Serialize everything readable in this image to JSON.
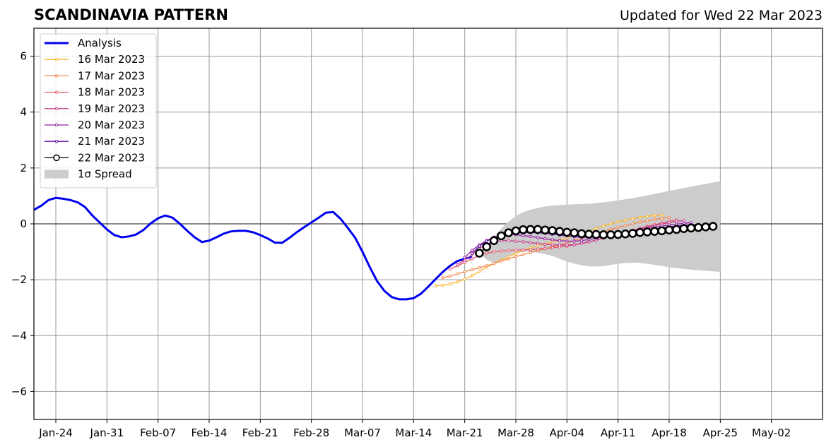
{
  "title": "SCANDINAVIA PATTERN",
  "subtitle": "Updated for Wed 22 Mar 2023",
  "chart_data": {
    "type": "line",
    "title": "SCANDINAVIA PATTERN",
    "subtitle": "Updated for Wed 22 Mar 2023",
    "xlabel": "",
    "ylabel": "",
    "x_range": [
      "2023-01-21",
      "2023-05-09"
    ],
    "ylim": [
      -7,
      7
    ],
    "grid": true,
    "legend_position": "top-left",
    "x_ticks": [
      "Jan-24",
      "Jan-31",
      "Feb-07",
      "Feb-14",
      "Feb-21",
      "Feb-28",
      "Mar-07",
      "Mar-14",
      "Mar-21",
      "Mar-28",
      "Apr-04",
      "Apr-11",
      "Apr-18",
      "Apr-25",
      "May-02"
    ],
    "x_tick_dates": [
      "2023-01-24",
      "2023-01-31",
      "2023-02-07",
      "2023-02-14",
      "2023-02-21",
      "2023-02-28",
      "2023-03-07",
      "2023-03-14",
      "2023-03-21",
      "2023-03-28",
      "2023-04-04",
      "2023-04-11",
      "2023-04-18",
      "2023-04-25",
      "2023-05-02"
    ],
    "y_ticks": [
      -6,
      -4,
      -2,
      0,
      2,
      4,
      6
    ],
    "y_tick_labels": [
      "−6",
      "−4",
      "−2",
      "0",
      "2",
      "4",
      "6"
    ],
    "legend": [
      "Analysis",
      "16 Mar 2023",
      "17 Mar 2023",
      "18 Mar 2023",
      "19 Mar 2023",
      "20 Mar 2023",
      "21 Mar 2023",
      "22 Mar 2023",
      "1σ Spread"
    ],
    "series": [
      {
        "name": "Analysis",
        "color": "#0000ee",
        "start": "2023-01-21",
        "values": [
          0.5,
          0.65,
          0.85,
          0.93,
          0.9,
          0.85,
          0.77,
          0.6,
          0.3,
          0.05,
          -0.2,
          -0.4,
          -0.48,
          -0.45,
          -0.38,
          -0.22,
          0.02,
          0.2,
          0.3,
          0.22,
          0.0,
          -0.25,
          -0.48,
          -0.65,
          -0.6,
          -0.48,
          -0.35,
          -0.27,
          -0.25,
          -0.25,
          -0.3,
          -0.4,
          -0.52,
          -0.67,
          -0.68,
          -0.5,
          -0.3,
          -0.12,
          0.05,
          0.22,
          0.4,
          0.42,
          0.18,
          -0.15,
          -0.5,
          -1.0,
          -1.55,
          -2.05,
          -2.4,
          -2.62,
          -2.7,
          -2.7,
          -2.66,
          -2.5,
          -2.25,
          -1.98,
          -1.72,
          -1.5,
          -1.33,
          -1.25,
          -1.18
        ]
      },
      {
        "name": "16 Mar 2023",
        "color": "#fcb42d",
        "start": "2023-03-17",
        "values": [
          -2.22,
          -2.2,
          -2.15,
          -2.08,
          -1.98,
          -1.85,
          -1.7,
          -1.55,
          -1.42,
          -1.3,
          -1.18,
          -1.06,
          -0.95,
          -0.86,
          -0.78,
          -0.72,
          -0.65,
          -0.58,
          -0.5,
          -0.42,
          -0.34,
          -0.26,
          -0.17,
          -0.08,
          0.0,
          0.07,
          0.13,
          0.18,
          0.23,
          0.27,
          0.3,
          0.32
        ]
      },
      {
        "name": "17 Mar 2023",
        "color": "#f2844b",
        "start": "2023-03-18",
        "values": [
          -1.93,
          -1.87,
          -1.79,
          -1.71,
          -1.64,
          -1.57,
          -1.5,
          -1.42,
          -1.33,
          -1.25,
          -1.17,
          -1.1,
          -1.03,
          -0.96,
          -0.89,
          -0.82,
          -0.75,
          -0.68,
          -0.6,
          -0.52,
          -0.44,
          -0.36,
          -0.28,
          -0.2,
          -0.13,
          -0.06,
          0.0,
          0.06,
          0.11,
          0.16,
          0.2,
          0.23
        ]
      },
      {
        "name": "18 Mar 2023",
        "color": "#e5586e",
        "start": "2023-03-19",
        "values": [
          -1.62,
          -1.5,
          -1.38,
          -1.25,
          -1.13,
          -1.05,
          -1.0,
          -0.97,
          -0.95,
          -0.94,
          -0.93,
          -0.92,
          -0.9,
          -0.88,
          -0.86,
          -0.83,
          -0.8,
          -0.75,
          -0.7,
          -0.64,
          -0.58,
          -0.51,
          -0.44,
          -0.37,
          -0.3,
          -0.23,
          -0.16,
          -0.09,
          -0.03,
          0.03,
          0.09,
          0.14
        ]
      },
      {
        "name": "19 Mar 2023",
        "color": "#c23e8c",
        "start": "2023-03-20",
        "values": [
          -1.45,
          -1.3,
          -1.1,
          -0.88,
          -0.72,
          -0.64,
          -0.6,
          -0.6,
          -0.62,
          -0.64,
          -0.67,
          -0.7,
          -0.73,
          -0.75,
          -0.76,
          -0.76,
          -0.74,
          -0.7,
          -0.65,
          -0.58,
          -0.51,
          -0.44,
          -0.37,
          -0.3,
          -0.24,
          -0.18,
          -0.12,
          -0.06,
          -0.01,
          0.04,
          0.09,
          0.12
        ]
      },
      {
        "name": "20 Mar 2023",
        "color": "#9320a5",
        "start": "2023-03-21",
        "values": [
          -1.2,
          -0.95,
          -0.75,
          -0.6,
          -0.48,
          -0.4,
          -0.38,
          -0.39,
          -0.42,
          -0.45,
          -0.49,
          -0.53,
          -0.57,
          -0.6,
          -0.62,
          -0.62,
          -0.6,
          -0.56,
          -0.51,
          -0.46,
          -0.41,
          -0.36,
          -0.31,
          -0.26,
          -0.21,
          -0.16,
          -0.12,
          -0.08,
          -0.04,
          -0.01,
          0.02,
          0.04
        ]
      },
      {
        "name": "21 Mar 2023",
        "color": "#5c0fa0",
        "start": "2023-03-22",
        "values": [
          -1.05,
          -0.8,
          -0.62,
          -0.48,
          -0.4,
          -0.35,
          -0.32,
          -0.31,
          -0.31,
          -0.32,
          -0.34,
          -0.37,
          -0.4,
          -0.43,
          -0.46,
          -0.48,
          -0.48,
          -0.47,
          -0.45,
          -0.42,
          -0.38,
          -0.35,
          -0.31,
          -0.27,
          -0.23,
          -0.19,
          -0.15,
          -0.11,
          -0.08,
          -0.05,
          -0.03,
          -0.02
        ]
      },
      {
        "name": "22 Mar 2023",
        "color": "#000000",
        "start": "2023-03-23",
        "values": [
          -1.05,
          -0.82,
          -0.6,
          -0.43,
          -0.32,
          -0.25,
          -0.21,
          -0.2,
          -0.2,
          -0.22,
          -0.24,
          -0.27,
          -0.3,
          -0.32,
          -0.35,
          -0.37,
          -0.38,
          -0.39,
          -0.39,
          -0.38,
          -0.36,
          -0.34,
          -0.31,
          -0.29,
          -0.27,
          -0.25,
          -0.22,
          -0.2,
          -0.17,
          -0.15,
          -0.13,
          -0.11,
          -0.09
        ]
      }
    ],
    "spread": {
      "name": "1σ Spread",
      "color": "#cccccc",
      "start": "2023-03-23",
      "upper": [
        -1.05,
        -0.78,
        -0.47,
        -0.17,
        0.08,
        0.28,
        0.42,
        0.51,
        0.57,
        0.62,
        0.65,
        0.67,
        0.69,
        0.7,
        0.71,
        0.72,
        0.74,
        0.77,
        0.8,
        0.84,
        0.88,
        0.92,
        0.97,
        1.02,
        1.07,
        1.12,
        1.18,
        1.23,
        1.28,
        1.33,
        1.38,
        1.43,
        1.48,
        1.52
      ],
      "lower": [
        -1.05,
        -1.28,
        -1.4,
        -1.3,
        -1.15,
        -1.05,
        -1.0,
        -1.0,
        -1.03,
        -1.08,
        -1.15,
        -1.25,
        -1.35,
        -1.42,
        -1.48,
        -1.52,
        -1.53,
        -1.51,
        -1.47,
        -1.43,
        -1.4,
        -1.39,
        -1.4,
        -1.43,
        -1.47,
        -1.51,
        -1.55,
        -1.58,
        -1.61,
        -1.64,
        -1.66,
        -1.68,
        -1.7,
        -1.72
      ]
    }
  }
}
